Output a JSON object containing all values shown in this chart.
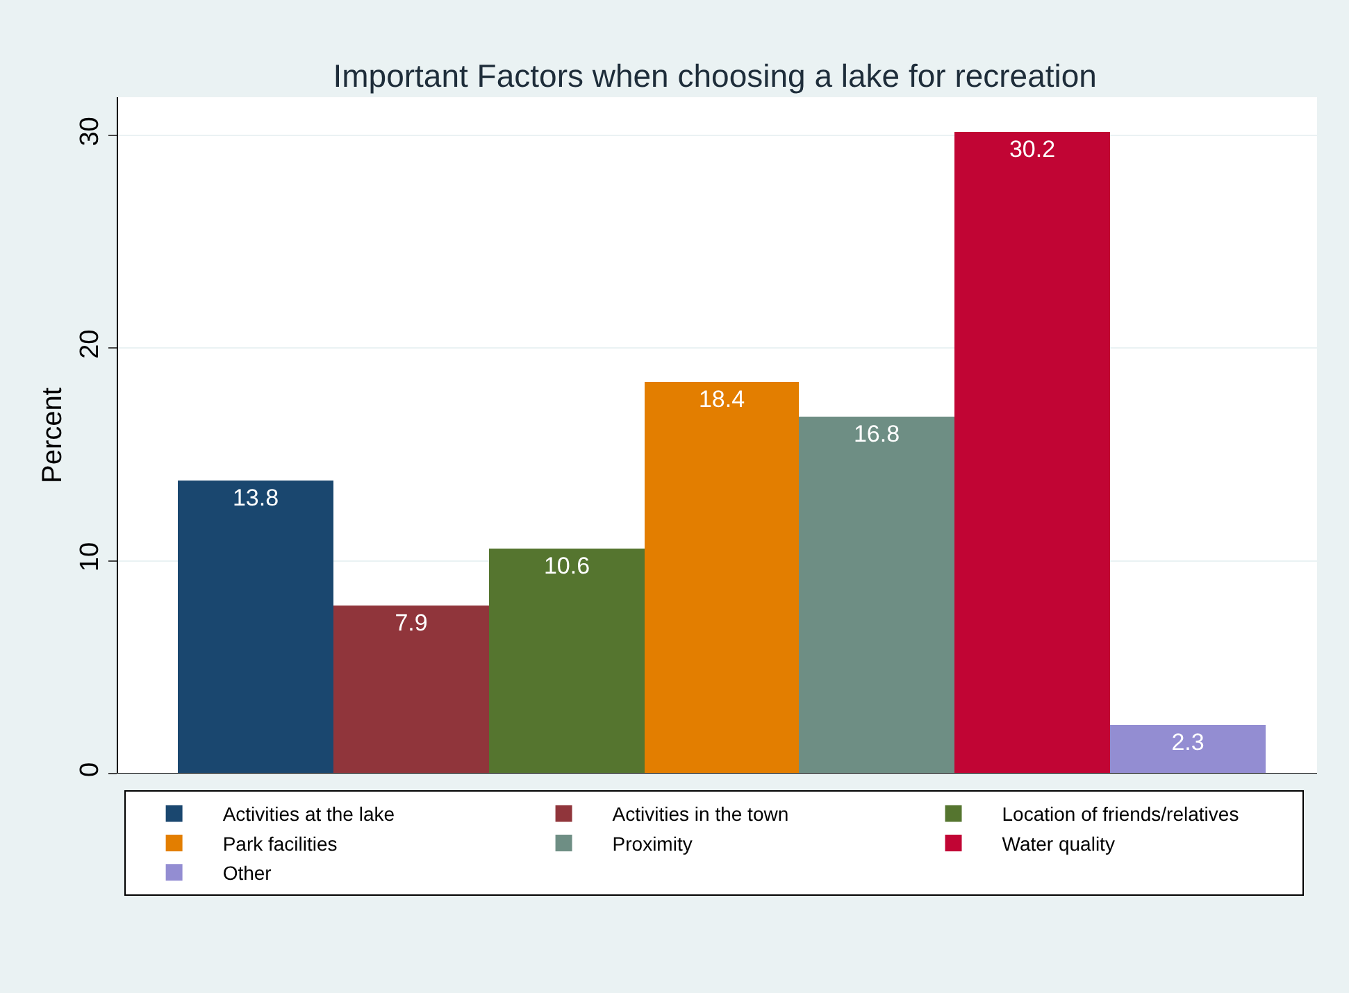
{
  "chart_data": {
    "type": "bar",
    "title": "Important Factors when choosing a lake for recreation",
    "ylabel": "Percent",
    "categories": [
      null,
      null,
      null,
      null,
      null,
      null,
      null
    ],
    "series": [
      {
        "name": "Activities at the lake",
        "color": "#1a476f",
        "values": [
          13.8,
          null,
          null,
          null,
          null,
          null,
          null
        ]
      },
      {
        "name": "Activities in the town",
        "color": "#90353b",
        "values": [
          null,
          7.9,
          null,
          null,
          null,
          null,
          null
        ]
      },
      {
        "name": "Location of friends/relatives",
        "color": "#55752f",
        "values": [
          null,
          null,
          10.6,
          null,
          null,
          null,
          null
        ]
      },
      {
        "name": "Park facilities",
        "color": "#e37e00",
        "values": [
          null,
          null,
          null,
          18.4,
          null,
          null,
          null
        ]
      },
      {
        "name": "Proximity",
        "color": "#6e8e84",
        "values": [
          null,
          null,
          null,
          null,
          16.8,
          null,
          null
        ]
      },
      {
        "name": "Water quality",
        "color": "#c10534",
        "values": [
          null,
          null,
          null,
          null,
          null,
          30.2,
          null
        ]
      },
      {
        "name": "Other",
        "color": "#938dd2",
        "values": [
          null,
          null,
          null,
          null,
          null,
          null,
          2.3
        ]
      }
    ],
    "ylim": [
      0,
      31.8
    ],
    "yticks": [
      0,
      10,
      20,
      30
    ],
    "grid": "y",
    "legend": "bottom",
    "data_labels": true
  }
}
